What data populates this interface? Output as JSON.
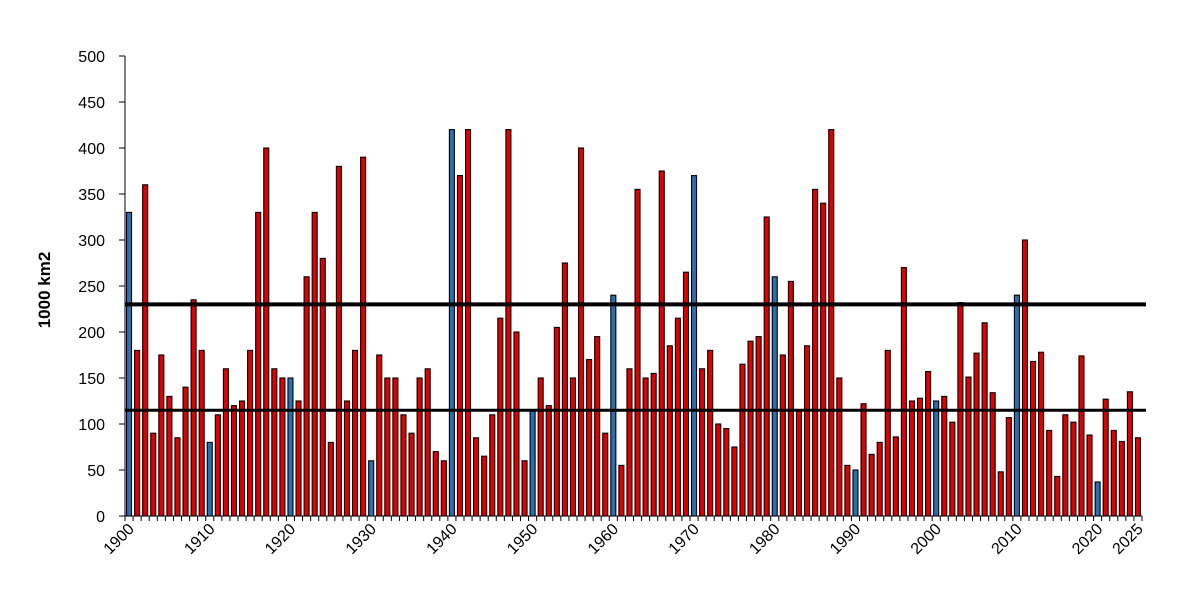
{
  "chart_data": {
    "type": "bar",
    "title": "",
    "xlabel": "",
    "ylabel": "1000 km2",
    "ylim": [
      0,
      500
    ],
    "yticks": [
      0,
      50,
      100,
      150,
      200,
      250,
      300,
      350,
      400,
      450,
      500
    ],
    "xtick_labels": [
      "1900",
      "1910",
      "1920",
      "1930",
      "1940",
      "1950",
      "1960",
      "1970",
      "1980",
      "1990",
      "2000",
      "2010",
      "2020",
      "2025"
    ],
    "grid": false,
    "legend": "none",
    "x": [
      1900,
      1901,
      1902,
      1903,
      1904,
      1905,
      1906,
      1907,
      1908,
      1909,
      1910,
      1911,
      1912,
      1913,
      1914,
      1915,
      1916,
      1917,
      1918,
      1919,
      1920,
      1921,
      1922,
      1923,
      1924,
      1925,
      1926,
      1927,
      1928,
      1929,
      1930,
      1931,
      1932,
      1933,
      1934,
      1935,
      1936,
      1937,
      1938,
      1939,
      1940,
      1941,
      1942,
      1943,
      1944,
      1945,
      1946,
      1947,
      1948,
      1949,
      1950,
      1951,
      1952,
      1953,
      1954,
      1955,
      1956,
      1957,
      1958,
      1959,
      1960,
      1961,
      1962,
      1963,
      1964,
      1965,
      1966,
      1967,
      1968,
      1969,
      1970,
      1971,
      1972,
      1973,
      1974,
      1975,
      1976,
      1977,
      1978,
      1979,
      1980,
      1981,
      1982,
      1983,
      1984,
      1985,
      1986,
      1987,
      1988,
      1989,
      1990,
      1991,
      1992,
      1993,
      1994,
      1995,
      1996,
      1997,
      1998,
      1999,
      2000,
      2001,
      2002,
      2003,
      2004,
      2005,
      2006,
      2007,
      2008,
      2009,
      2010,
      2011,
      2012,
      2013,
      2014,
      2015,
      2016,
      2017,
      2018,
      2019,
      2020,
      2021,
      2022,
      2023,
      2024,
      2025
    ],
    "values": [
      330,
      180,
      360,
      90,
      175,
      130,
      85,
      140,
      235,
      180,
      80,
      110,
      160,
      120,
      125,
      180,
      330,
      400,
      160,
      150,
      150,
      125,
      260,
      330,
      280,
      80,
      380,
      125,
      180,
      390,
      60,
      175,
      150,
      150,
      110,
      90,
      150,
      160,
      70,
      60,
      420,
      370,
      420,
      85,
      65,
      110,
      215,
      420,
      200,
      60,
      115,
      150,
      120,
      205,
      275,
      150,
      400,
      170,
      195,
      90,
      240,
      55,
      160,
      355,
      150,
      155,
      375,
      185,
      215,
      265,
      370,
      160,
      180,
      100,
      95,
      75,
      165,
      190,
      195,
      325,
      260,
      175,
      255,
      115,
      185,
      355,
      340,
      420,
      150,
      55,
      50,
      122,
      67,
      80,
      180,
      86,
      270,
      125,
      128,
      157,
      125,
      130,
      102,
      232,
      151,
      177,
      210,
      134,
      48,
      107,
      240,
      300,
      168,
      178,
      93,
      43,
      110,
      102,
      174,
      88,
      37,
      127,
      93,
      81,
      135,
      85
    ],
    "reference_lines": [
      230,
      115
    ],
    "colors": {
      "default_bar": "#e00000",
      "decade_bar": "#2b6fb3",
      "outline": "#000000",
      "reference_line": "#000000"
    }
  }
}
